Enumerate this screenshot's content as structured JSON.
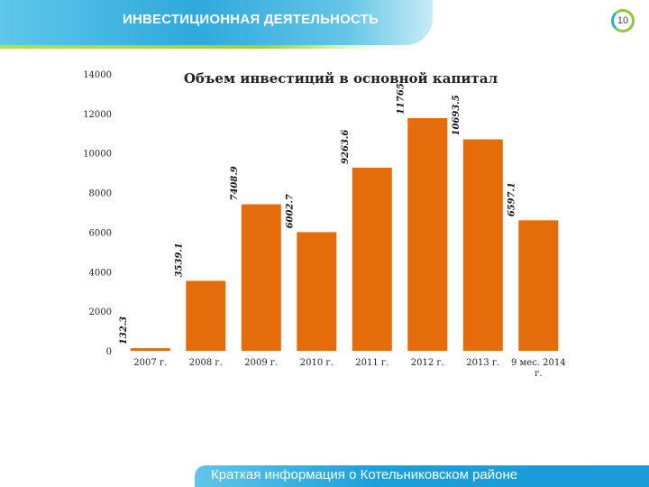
{
  "header": {
    "title": "ИНВЕСТИЦИОННАЯ ДЕЯТЕЛЬНОСТЬ",
    "page_number": "10"
  },
  "footer": {
    "text": "Краткая информация о Котельниковском районе"
  },
  "colors": {
    "bar": "#e46c0a",
    "header": "#2fa9dd",
    "accent": "#8fc63f"
  },
  "chart_data": {
    "type": "bar",
    "title": "Объем инвестиций в основной капитал",
    "categories": [
      "2007 г.",
      "2008 г.",
      "2009 г.",
      "2010 г.",
      "2011 г.",
      "2012 г.",
      "2013 г.",
      "9 мес. 2014 г."
    ],
    "values": [
      132.3,
      3539.1,
      7408.9,
      6002.7,
      9263.6,
      11765,
      10693.5,
      6597.1
    ],
    "value_labels": [
      "132.3",
      "3539.1",
      "7408.9",
      "6002.7",
      "9263.6",
      "11765",
      "10693.5",
      "6597.1"
    ],
    "yticks": [
      0,
      2000,
      4000,
      6000,
      8000,
      10000,
      12000,
      14000
    ],
    "ylim": [
      0,
      14000
    ],
    "xlabel": "",
    "ylabel": "",
    "grid": false,
    "legend": "none"
  }
}
